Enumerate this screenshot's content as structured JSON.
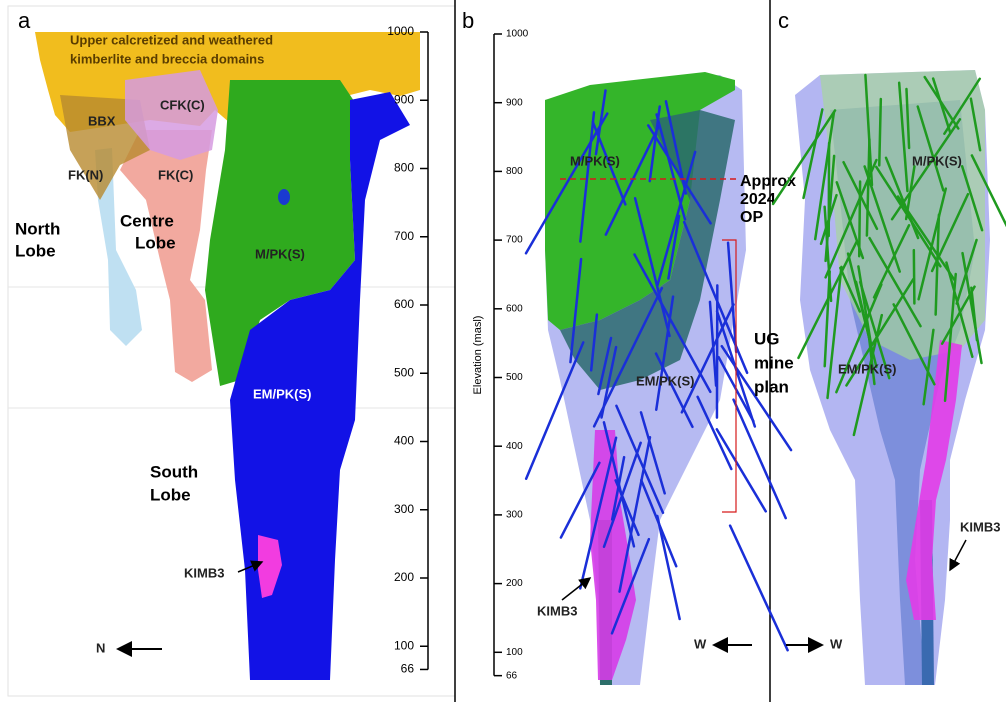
{
  "panels": [
    {
      "letter": "a",
      "domain_note": [
        "Upper calcretized and weathered",
        "kimberlite and breccia domains"
      ],
      "bbx": "BBX",
      "cfk": "CFK(C)",
      "fkn": "FK(N)",
      "fkc": "FK(C)",
      "north_lobe": [
        "North",
        "Lobe"
      ],
      "centre_lobe": [
        "Centre",
        "Lobe"
      ],
      "south_lobe": [
        "South",
        "Lobe"
      ],
      "mpk": "M/PK(S)",
      "empk": "EM/PK(S)",
      "kimb3": "KIMB3",
      "direction": "N",
      "elevation_ticks": [
        1000,
        900,
        800,
        700,
        600,
        500,
        400,
        300,
        200,
        100,
        66
      ]
    },
    {
      "letter": "b",
      "axis_title": "Elevation (masl)",
      "elevation_ticks": [
        1000,
        900,
        800,
        700,
        600,
        500,
        400,
        300,
        200,
        100,
        66
      ],
      "mpk": "M/PK(S)",
      "empk": "EM/PK(S)",
      "kimb3": "KIMB3",
      "open_pit": [
        "Approx",
        "2024",
        "OP"
      ],
      "ug_plan": [
        "UG",
        "mine",
        "plan"
      ],
      "direction": "W"
    },
    {
      "letter": "c",
      "mpk": "M/PK(S)",
      "empk": "EM/PK(S)",
      "kimb3": "KIMB3",
      "direction": "W"
    }
  ]
}
